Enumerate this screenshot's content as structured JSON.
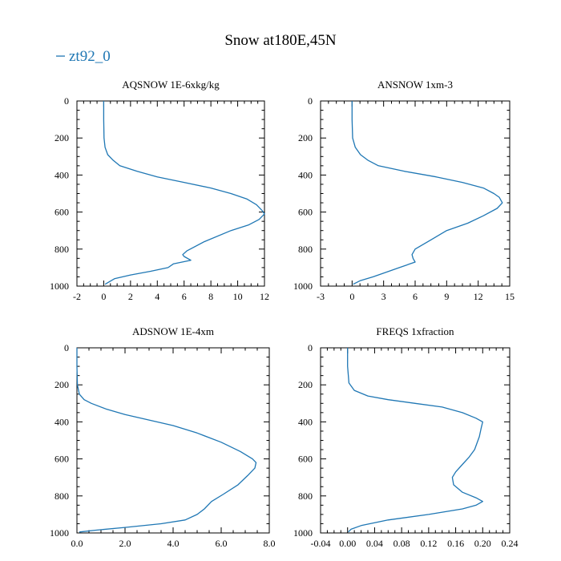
{
  "title": "Snow at180E,45N",
  "legend": {
    "label": "zt92_0",
    "color": "#1f77b4"
  },
  "chart_data": [
    {
      "type": "line",
      "title": "AQSNOW  1E-6xkg/kg",
      "xlim": [
        -2,
        12
      ],
      "ylim": [
        1000,
        0
      ],
      "xticks": [
        -2,
        0,
        2,
        4,
        6,
        8,
        10,
        12
      ],
      "xtick_labels": [
        "-2",
        "0",
        "2",
        "4",
        "6",
        "8",
        "10",
        "12"
      ],
      "yticks": [
        0,
        200,
        400,
        600,
        800,
        1000
      ],
      "ytick_labels": [
        "0",
        "200",
        "400",
        "600",
        "800",
        "1000"
      ],
      "series": [
        {
          "name": "zt92_0",
          "x": [
            0,
            0,
            0.02,
            0.1,
            0.3,
            0.7,
            1.2,
            2.5,
            4.0,
            6.0,
            8.0,
            9.5,
            10.7,
            11.4,
            11.8,
            12.0,
            11.6,
            10.8,
            9.5,
            7.5,
            6.2,
            5.9,
            6.0,
            6.5,
            5.2,
            4.8,
            3.5,
            2.0,
            0.8,
            0.1
          ],
          "y": [
            0,
            100,
            200,
            250,
            290,
            320,
            350,
            380,
            410,
            440,
            470,
            500,
            530,
            560,
            590,
            610,
            640,
            670,
            700,
            760,
            810,
            830,
            840,
            860,
            880,
            900,
            920,
            940,
            960,
            990
          ]
        }
      ]
    },
    {
      "type": "line",
      "title": "ANSNOW  1xm-3",
      "xlim": [
        -3,
        15
      ],
      "ylim": [
        1000,
        0
      ],
      "xticks": [
        -3,
        0,
        3,
        6,
        9,
        12,
        15
      ],
      "xtick_labels": [
        "-3",
        "0",
        "3",
        "6",
        "9",
        "12",
        "15"
      ],
      "yticks": [
        0,
        200,
        400,
        600,
        800,
        1000
      ],
      "ytick_labels": [
        "0",
        "200",
        "400",
        "600",
        "800",
        "1000"
      ],
      "series": [
        {
          "name": "zt92_0",
          "x": [
            0,
            0,
            0.05,
            0.3,
            0.8,
            1.5,
            2.5,
            5.0,
            8.0,
            10.5,
            12.5,
            13.5,
            14.0,
            14.3,
            13.8,
            12.5,
            11.0,
            9.0,
            7.5,
            6.0,
            5.7,
            5.8,
            6.0,
            5.5,
            4.5,
            3.5,
            2.0,
            0.8,
            0.1
          ],
          "y": [
            0,
            100,
            200,
            250,
            290,
            320,
            350,
            380,
            410,
            440,
            470,
            500,
            520,
            550,
            580,
            620,
            660,
            700,
            750,
            800,
            830,
            850,
            870,
            880,
            900,
            920,
            950,
            970,
            990
          ]
        }
      ]
    },
    {
      "type": "line",
      "title": "ADSNOW  1E-4xm",
      "xlim": [
        0,
        8
      ],
      "ylim": [
        1000,
        0
      ],
      "xticks": [
        0,
        2,
        4,
        6,
        8
      ],
      "xtick_labels": [
        "0.0",
        "2.0",
        "4.0",
        "6.0",
        "8.0"
      ],
      "yticks": [
        0,
        200,
        400,
        600,
        800,
        1000
      ],
      "ytick_labels": [
        "0",
        "200",
        "400",
        "600",
        "800",
        "1000"
      ],
      "series": [
        {
          "name": "zt92_0",
          "x": [
            0,
            0,
            0.02,
            0.1,
            0.3,
            0.6,
            1.2,
            2.0,
            3.0,
            4.0,
            5.0,
            6.0,
            6.8,
            7.3,
            7.45,
            7.4,
            7.1,
            6.7,
            6.1,
            5.6,
            5.3,
            5.0,
            4.5,
            3.5,
            2.0,
            0.8,
            0.1
          ],
          "y": [
            0,
            100,
            200,
            250,
            280,
            300,
            330,
            360,
            390,
            420,
            460,
            510,
            560,
            600,
            620,
            650,
            690,
            740,
            790,
            830,
            870,
            900,
            930,
            950,
            970,
            985,
            995
          ]
        }
      ]
    },
    {
      "type": "line",
      "title": "FREQS  1xfraction",
      "xlim": [
        -0.04,
        0.24
      ],
      "ylim": [
        1000,
        0
      ],
      "xticks": [
        -0.04,
        0,
        0.04,
        0.08,
        0.12,
        0.16,
        0.2,
        0.24
      ],
      "xtick_labels": [
        "-0.04",
        "0.00",
        "0.04",
        "0.08",
        "0.12",
        "0.16",
        "0.20",
        "0.24"
      ],
      "yticks": [
        0,
        200,
        400,
        600,
        800,
        1000
      ],
      "ytick_labels": [
        "0",
        "200",
        "400",
        "600",
        "800",
        "1000"
      ],
      "series": [
        {
          "name": "zt92_0",
          "x": [
            0,
            0,
            0.002,
            0.01,
            0.03,
            0.06,
            0.1,
            0.14,
            0.17,
            0.19,
            0.2,
            0.198,
            0.195,
            0.188,
            0.18,
            0.17,
            0.16,
            0.155,
            0.157,
            0.17,
            0.19,
            0.2,
            0.19,
            0.17,
            0.12,
            0.06,
            0.02,
            0.005,
            0.001
          ],
          "y": [
            0,
            100,
            190,
            230,
            260,
            280,
            300,
            320,
            350,
            380,
            400,
            430,
            480,
            550,
            590,
            630,
            670,
            700,
            740,
            780,
            810,
            830,
            850,
            870,
            900,
            930,
            960,
            980,
            995
          ]
        }
      ]
    }
  ]
}
